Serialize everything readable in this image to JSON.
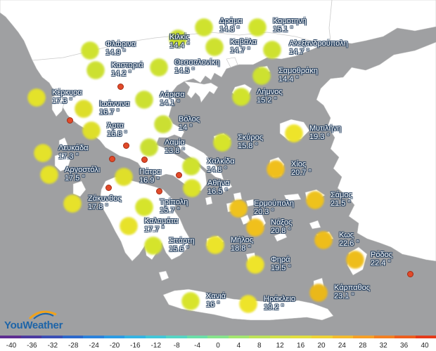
{
  "map": {
    "sea_color": "#9fa0a2",
    "land_color": "#ffffff",
    "border_color": "#c8c8c8",
    "cities": [
      {
        "name": "Δράμα",
        "temp": "14.8 °",
        "value": 14.8,
        "color": "#cfe22e"
      },
      {
        "name": "Κομοτηνή",
        "temp": "15.1 °",
        "value": 15.1,
        "color": "#d0e32c"
      },
      {
        "name": "Κιλκίς",
        "temp": "14.4 °",
        "value": 14.4,
        "color": "#cde130"
      },
      {
        "name": "Φλώρινα",
        "temp": "14.9 °",
        "value": 14.9,
        "color": "#cfe22e"
      },
      {
        "name": "Καβάλα",
        "temp": "14.7 °",
        "value": 14.7,
        "color": "#cee12f"
      },
      {
        "name": "Αλεξανδρούπολη",
        "temp": "14.7 °",
        "value": 14.7,
        "color": "#cee12f"
      },
      {
        "name": "Καστοριά",
        "temp": "14.2 °",
        "value": 14.2,
        "color": "#cce031"
      },
      {
        "name": "Θεσσαλονίκη",
        "temp": "14.5 °",
        "value": 14.5,
        "color": "#cde130"
      },
      {
        "name": "Σαμοθράκη",
        "temp": "14.4 °",
        "value": 14.4,
        "color": "#cde130"
      },
      {
        "name": "Κέρκυρα",
        "temp": "17.3 °",
        "value": 17.3,
        "color": "#e4e22a"
      },
      {
        "name": "Λάρισα",
        "temp": "14.1 °",
        "value": 14.1,
        "color": "#cce031"
      },
      {
        "name": "Λήμνος",
        "temp": "15.2 °",
        "value": 15.2,
        "color": "#d1e32c"
      },
      {
        "name": "Ιωάννινα",
        "temp": "16.7 °",
        "value": 16.7,
        "color": "#ddde2a"
      },
      {
        "name": "Βόλος",
        "temp": "14 °",
        "value": 14,
        "color": "#cbdf32"
      },
      {
        "name": "Άρτα",
        "temp": "16.8 °",
        "value": 16.8,
        "color": "#dedf2a"
      },
      {
        "name": "Μυτιλήνη",
        "temp": "19.3 °",
        "value": 19.3,
        "color": "#eee42a"
      },
      {
        "name": "Σκύρος",
        "temp": "15.8 °",
        "value": 15.8,
        "color": "#d6e42b"
      },
      {
        "name": "Λευκάδα",
        "temp": "17.3 °",
        "value": 17.3,
        "color": "#e4e22a"
      },
      {
        "name": "Λαμία",
        "temp": "13.8 °",
        "value": 13.8,
        "color": "#cadf33"
      },
      {
        "name": "Χαλκίδα",
        "temp": "14.8 °",
        "value": 14.8,
        "color": "#cfe22e"
      },
      {
        "name": "Χίος",
        "temp": "20.7 °",
        "value": 20.7,
        "color": "#f0bf1c"
      },
      {
        "name": "Αργοστόλι",
        "temp": "17.5 °",
        "value": 17.5,
        "color": "#e5e22a"
      },
      {
        "name": "Πάτρα",
        "temp": "16.9 °",
        "value": 16.9,
        "color": "#dfdf2a"
      },
      {
        "name": "Αθήνα",
        "temp": "16.5 °",
        "value": 16.5,
        "color": "#dbe32a"
      },
      {
        "name": "Ζάκυνθος",
        "temp": "17.8 °",
        "value": 17.8,
        "color": "#e7e22a"
      },
      {
        "name": "Σάμος",
        "temp": "21.5 °",
        "value": 21.5,
        "color": "#eec21c"
      },
      {
        "name": "Ερμούπολη",
        "temp": "20.3 °",
        "value": 20.3,
        "color": "#efc21e"
      },
      {
        "name": "Τρίπολη",
        "temp": "15.7 °",
        "value": 15.7,
        "color": "#d6e42b"
      },
      {
        "name": "Νάξος",
        "temp": "20.8 °",
        "value": 20.8,
        "color": "#f0c01c"
      },
      {
        "name": "Καλαμάτα",
        "temp": "17.7 °",
        "value": 17.7,
        "color": "#e7e22a"
      },
      {
        "name": "Κως",
        "temp": "22.6 °",
        "value": 22.6,
        "color": "#eebd1a"
      },
      {
        "name": "Σπάρτη",
        "temp": "15.6 °",
        "value": 15.6,
        "color": "#d5e42b"
      },
      {
        "name": "Μήλος",
        "temp": "18.8 °",
        "value": 18.8,
        "color": "#ece42a"
      },
      {
        "name": "Ρόδος",
        "temp": "22.4 °",
        "value": 22.4,
        "color": "#eebd1a"
      },
      {
        "name": "Φηρά",
        "temp": "19.5 °",
        "value": 19.5,
        "color": "#efe42a"
      },
      {
        "name": "Κάρπαθος",
        "temp": "23.1 °",
        "value": 23.1,
        "color": "#eab81a"
      },
      {
        "name": "Χανιά",
        "temp": "16 °",
        "value": 16,
        "color": "#d8e42b"
      },
      {
        "name": "Ηράκλειο",
        "temp": "19.2 °",
        "value": 19.2,
        "color": "#eee42a"
      }
    ]
  },
  "logo": {
    "text": "YouWeather"
  },
  "scale": {
    "colors": [
      "#5e2d91",
      "#4b3aa0",
      "#3b4fb5",
      "#2c68cb",
      "#2b82db",
      "#2c9be3",
      "#35b3e2",
      "#43c6d8",
      "#56d4c4",
      "#6bdfa9",
      "#86e48c",
      "#a3e670",
      "#bde359",
      "#d2e24a",
      "#e2df3f",
      "#eed236",
      "#f3bb2e",
      "#f59f27",
      "#f27f22",
      "#ec5d1e",
      "#e43a1a"
    ],
    "labels": [
      "-40",
      "-36",
      "-32",
      "-28",
      "-24",
      "-20",
      "-16",
      "-12",
      "-8",
      "-4",
      "0",
      "4",
      "8",
      "12",
      "16",
      "20",
      "24",
      "28",
      "32",
      "36",
      "40"
    ]
  }
}
